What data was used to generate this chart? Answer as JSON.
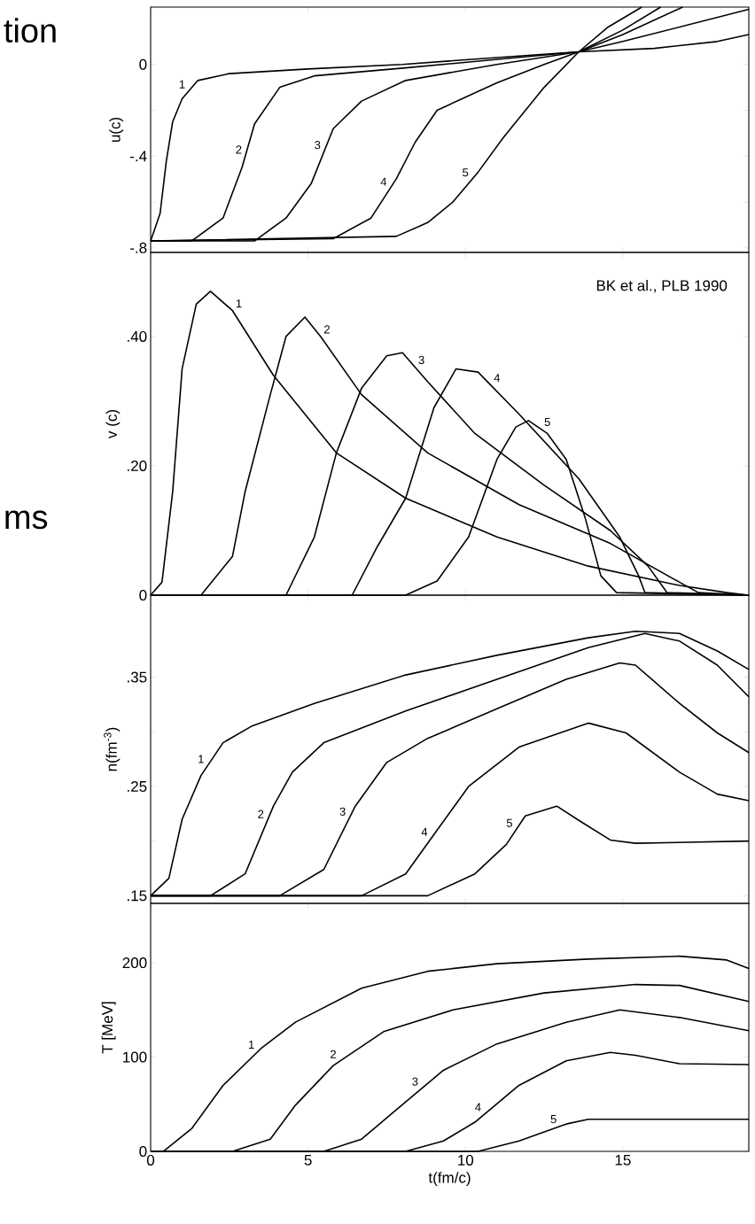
{
  "chart_data": [
    {
      "type": "line",
      "ylabel": "u(c)",
      "xlim": [
        0,
        19
      ],
      "ylim": [
        -0.82,
        0.25
      ],
      "xticks": [
        0,
        5,
        10,
        15
      ],
      "yticks": [
        0,
        {
          "value": -0.2,
          "label": null
        },
        {
          "value": -0.4,
          "label": "-.4"
        },
        {
          "value": -0.6,
          "label": null
        },
        {
          "value": -0.8,
          "label": "-.8"
        }
      ],
      "tick_labels": "y",
      "series": [
        {
          "name": "1",
          "color": "#000000",
          "x": [
            0,
            0.3,
            0.5,
            0.7,
            1,
            1.5,
            2.5,
            5,
            8,
            11,
            13.6,
            16,
            18,
            19
          ],
          "values": [
            -0.77,
            -0.65,
            -0.42,
            -0.25,
            -0.15,
            -0.07,
            -0.04,
            -0.02,
            0.0,
            0.03,
            0.055,
            0.07,
            0.1,
            0.13
          ]
        },
        {
          "name": "2",
          "color": "#000000",
          "x": [
            0,
            1.3,
            2.3,
            2.9,
            3.3,
            4.1,
            5.2,
            8.1,
            13.6,
            15,
            17,
            19
          ],
          "values": [
            -0.77,
            -0.77,
            -0.67,
            -0.45,
            -0.26,
            -0.1,
            -0.05,
            -0.015,
            0.055,
            0.1,
            0.17,
            0.24
          ]
        },
        {
          "name": "3",
          "color": "#000000",
          "x": [
            0,
            3.3,
            4.3,
            5.1,
            5.8,
            6.7,
            8.1,
            11,
            13.6,
            15,
            16.9
          ],
          "values": [
            -0.77,
            -0.77,
            -0.67,
            -0.52,
            -0.28,
            -0.16,
            -0.07,
            0.0,
            0.055,
            0.13,
            0.25
          ]
        },
        {
          "name": "4",
          "color": "#000000",
          "x": [
            0,
            5.8,
            7,
            7.8,
            8.4,
            9.1,
            11,
            12.5,
            13.6,
            15,
            16.2
          ],
          "values": [
            -0.77,
            -0.76,
            -0.67,
            -0.5,
            -0.34,
            -0.2,
            -0.08,
            0.0,
            0.055,
            0.15,
            0.25
          ]
        },
        {
          "name": "5",
          "color": "#000000",
          "x": [
            0,
            7.8,
            8.8,
            9.6,
            10.4,
            11.2,
            12.5,
            13.6,
            14.5,
            15.6
          ],
          "values": [
            -0.77,
            -0.75,
            -0.69,
            -0.6,
            -0.47,
            -0.32,
            -0.1,
            0.055,
            0.16,
            0.25
          ]
        }
      ],
      "annotations": [
        "tion"
      ]
    },
    {
      "type": "line",
      "ylabel": "v (c)",
      "xlim": [
        0,
        19
      ],
      "ylim": [
        0,
        0.53
      ],
      "xticks": [
        0,
        5,
        10,
        15
      ],
      "yticks": [
        {
          "value": 0,
          "label": "0"
        },
        {
          "value": 0.2,
          "label": ".20"
        },
        {
          "value": 0.4,
          "label": ".40"
        }
      ],
      "tick_labels": "y",
      "series": [
        {
          "name": "1",
          "color": "#000000",
          "x": [
            0,
            0.36,
            0.7,
            1.0,
            1.45,
            1.9,
            2.6,
            3.9,
            5.9,
            8.1,
            11,
            13.9,
            16.8,
            18.3,
            19
          ],
          "values": [
            0,
            0.02,
            0.16,
            0.35,
            0.45,
            0.47,
            0.44,
            0.34,
            0.22,
            0.15,
            0.09,
            0.045,
            0.015,
            0.004,
            0
          ]
        },
        {
          "name": "2",
          "color": "#000000",
          "x": [
            0,
            1.6,
            2.6,
            3.0,
            3.8,
            4.3,
            4.9,
            5.4,
            6.7,
            8.8,
            11.7,
            14.6,
            16.8,
            17.4,
            19
          ],
          "values": [
            0,
            0,
            0.06,
            0.16,
            0.31,
            0.4,
            0.43,
            0.4,
            0.31,
            0.22,
            0.14,
            0.08,
            0.02,
            0.004,
            0
          ]
        },
        {
          "name": "3",
          "color": "#000000",
          "x": [
            0,
            4.3,
            5.2,
            5.9,
            6.7,
            7.5,
            8,
            8.8,
            10.3,
            12.5,
            14.6,
            15.8,
            16.4,
            19
          ],
          "values": [
            0,
            0,
            0.09,
            0.22,
            0.32,
            0.37,
            0.375,
            0.33,
            0.25,
            0.17,
            0.1,
            0.045,
            0.004,
            0
          ]
        },
        {
          "name": "4",
          "color": "#000000",
          "x": [
            0,
            6.4,
            7.2,
            8.1,
            9,
            9.7,
            10.4,
            11.7,
            13.6,
            14.9,
            15.5,
            15.7,
            19
          ],
          "values": [
            0,
            0,
            0.075,
            0.15,
            0.29,
            0.35,
            0.345,
            0.28,
            0.18,
            0.09,
            0.03,
            0.004,
            0
          ]
        },
        {
          "name": "5",
          "color": "#000000",
          "x": [
            0,
            8.1,
            9.1,
            10.1,
            11,
            11.6,
            12,
            12.6,
            13.2,
            13.8,
            14.3,
            14.8,
            19
          ],
          "values": [
            0,
            0,
            0.022,
            0.09,
            0.21,
            0.26,
            0.27,
            0.25,
            0.21,
            0.12,
            0.03,
            0.004,
            0
          ]
        }
      ],
      "annotations": [
        "BK et al., PLB 1990",
        "ms"
      ]
    },
    {
      "type": "line",
      "ylabel": "n(fm$^{-3}$)",
      "xlim": [
        0,
        19
      ],
      "ylim": [
        0.143,
        0.425
      ],
      "xticks": [
        0,
        5,
        10,
        15
      ],
      "yticks": [
        {
          "value": 0.15,
          "label": ".15"
        },
        {
          "value": 0.2,
          "label": null
        },
        {
          "value": 0.25,
          "label": ".25"
        },
        {
          "value": 0.3,
          "label": null
        },
        {
          "value": 0.35,
          "label": ".35"
        }
      ],
      "tick_labels": "y",
      "series": [
        {
          "name": "1",
          "color": "#000000",
          "x": [
            0,
            0.58,
            1.0,
            1.6,
            2.3,
            3.2,
            5.2,
            8.1,
            11,
            13.9,
            15.4,
            16.8,
            18,
            19
          ],
          "values": [
            0.15,
            0.166,
            0.22,
            0.26,
            0.29,
            0.305,
            0.326,
            0.352,
            0.37,
            0.386,
            0.392,
            0.39,
            0.374,
            0.357
          ]
        },
        {
          "name": "2",
          "color": "#000000",
          "x": [
            0,
            1.9,
            3,
            3.9,
            4.5,
            5.5,
            8.1,
            11,
            13.9,
            15.7,
            16.8,
            18,
            19
          ],
          "values": [
            0.15,
            0.15,
            0.17,
            0.232,
            0.263,
            0.29,
            0.319,
            0.348,
            0.377,
            0.39,
            0.383,
            0.361,
            0.332
          ]
        },
        {
          "name": "3",
          "color": "#000000",
          "x": [
            0,
            4.1,
            5.5,
            6.5,
            7.5,
            8.8,
            11,
            13.2,
            14.9,
            15.4,
            16.8,
            18,
            19
          ],
          "values": [
            0.15,
            0.15,
            0.174,
            0.232,
            0.272,
            0.294,
            0.321,
            0.348,
            0.363,
            0.361,
            0.326,
            0.299,
            0.281
          ]
        },
        {
          "name": "4",
          "color": "#000000",
          "x": [
            0,
            6.7,
            8.1,
            9.1,
            10.1,
            11.7,
            13.9,
            15.1,
            16.8,
            18,
            19
          ],
          "values": [
            0.15,
            0.15,
            0.17,
            0.21,
            0.25,
            0.286,
            0.308,
            0.299,
            0.263,
            0.243,
            0.237
          ]
        },
        {
          "name": "5",
          "color": "#000000",
          "x": [
            0,
            8.8,
            10.3,
            11.3,
            11.9,
            12.9,
            13.6,
            14.6,
            15.4,
            19
          ],
          "values": [
            0.15,
            0.15,
            0.17,
            0.197,
            0.223,
            0.232,
            0.219,
            0.201,
            0.198,
            0.2
          ]
        }
      ]
    },
    {
      "type": "line",
      "xlabel": "t(fm/c)",
      "ylabel": "T [MeV]",
      "xlim": [
        0,
        19
      ],
      "ylim": [
        0,
        263
      ],
      "xticks": [
        0,
        5,
        10,
        15
      ],
      "yticks": [
        0,
        100,
        200
      ],
      "series": [
        {
          "name": "1",
          "color": "#000000",
          "x": [
            0,
            0.4,
            1.3,
            2.3,
            3.5,
            4.6,
            6.7,
            8.8,
            11,
            13.9,
            16.8,
            18.3,
            19
          ],
          "values": [
            0,
            0,
            24,
            70,
            109,
            137,
            173,
            191,
            199,
            204,
            207,
            203,
            194
          ]
        },
        {
          "name": "2",
          "color": "#000000",
          "x": [
            0,
            2.6,
            3.8,
            4.6,
            5.8,
            7.4,
            9.6,
            12.5,
            15.4,
            16.8,
            19
          ],
          "values": [
            0,
            0,
            13,
            49,
            91,
            127,
            150,
            168,
            177,
            176,
            159
          ]
        },
        {
          "name": "3",
          "color": "#000000",
          "x": [
            0,
            5.5,
            6.7,
            7.8,
            9.3,
            11,
            13.2,
            14.9,
            16.8,
            19
          ],
          "values": [
            0,
            0,
            13,
            44,
            86,
            114,
            137,
            150,
            142,
            128
          ]
        },
        {
          "name": "4",
          "color": "#000000",
          "x": [
            0,
            8.1,
            9.3,
            10.3,
            11.7,
            13.2,
            14.6,
            15.4,
            16.8,
            19
          ],
          "values": [
            0,
            0,
            11,
            31,
            70,
            96,
            105,
            102,
            93,
            92
          ]
        },
        {
          "name": "5",
          "color": "#000000",
          "x": [
            0,
            10.4,
            11.7,
            13.2,
            13.9,
            19
          ],
          "values": [
            0,
            0,
            11,
            29,
            34,
            34
          ]
        }
      ]
    }
  ]
}
